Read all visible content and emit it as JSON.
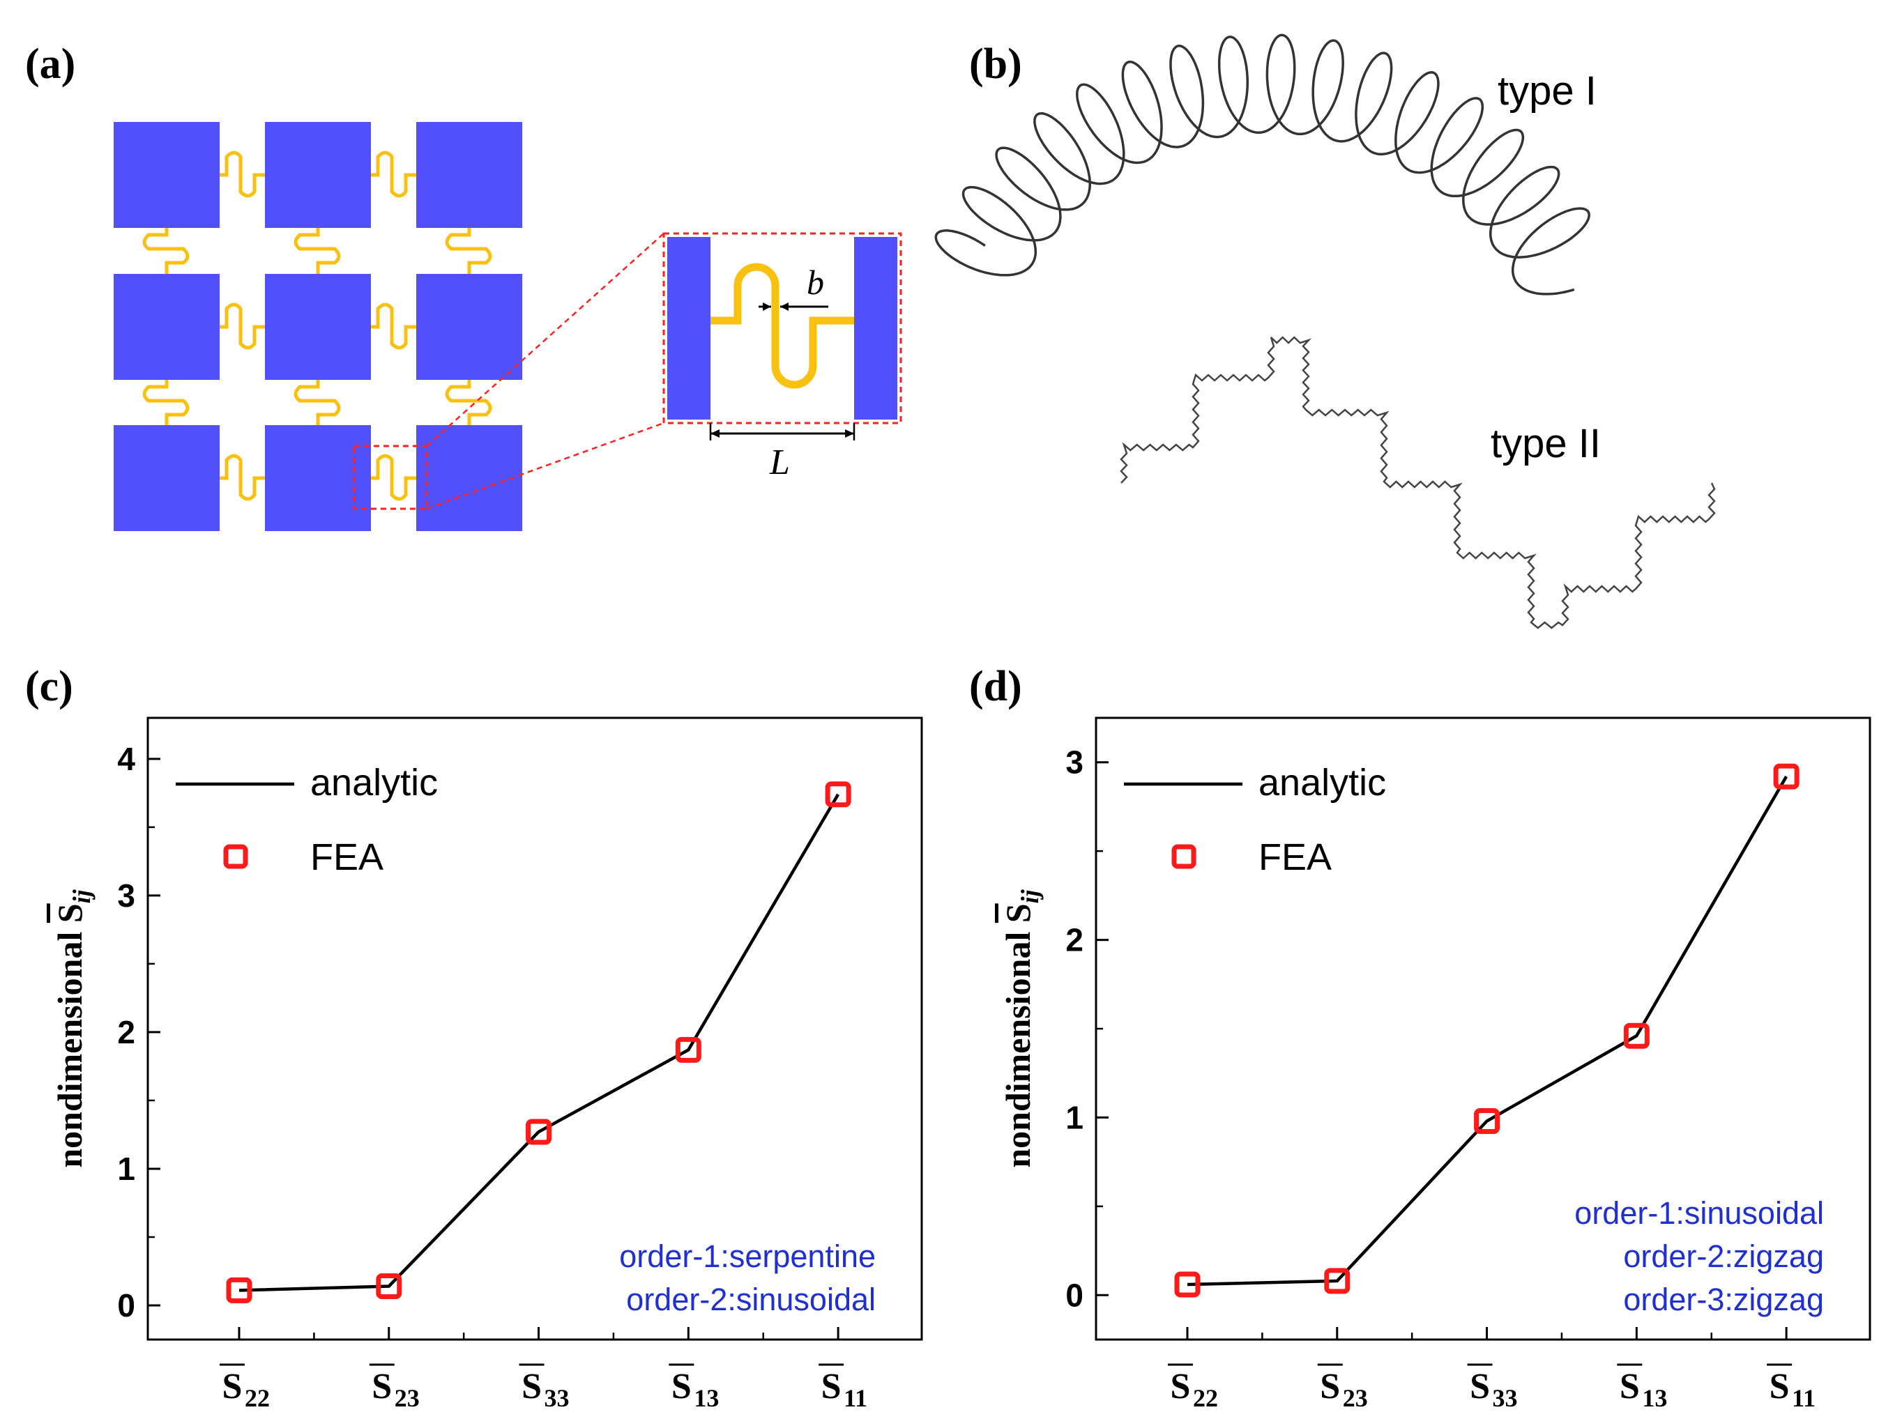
{
  "panels": {
    "a": {
      "label": "(a)",
      "b_label": "b",
      "L_label": "L",
      "colors": {
        "square": "#5150fb",
        "wire": "#f9c10f",
        "zoom": "#ff2020"
      }
    },
    "b": {
      "label": "(b)",
      "type1": "type I",
      "type2": "type II"
    },
    "c": {
      "label": "(c)"
    },
    "d": {
      "label": "(d)"
    }
  },
  "chart_data": [
    {
      "type": "line",
      "panel": "c",
      "ylabel": "nondimensional S̄ij",
      "ylabel_main": "nondimensional ",
      "ylabel_sym": "S",
      "ylabel_sub": "ij",
      "categories": [
        {
          "main": "S",
          "sub": "22"
        },
        {
          "main": "S",
          "sub": "23"
        },
        {
          "main": "S",
          "sub": "33"
        },
        {
          "main": "S",
          "sub": "13"
        },
        {
          "main": "S",
          "sub": "11"
        }
      ],
      "ylim": [
        -0.25,
        4.3
      ],
      "yticks": [
        "0",
        "1",
        "2",
        "3",
        "4"
      ],
      "series": [
        {
          "name": "analytic",
          "kind": "line",
          "values": [
            0.11,
            0.14,
            1.27,
            1.87,
            3.74
          ]
        },
        {
          "name": "FEA",
          "kind": "marker",
          "values": [
            0.11,
            0.14,
            1.27,
            1.87,
            3.74
          ]
        }
      ],
      "annotations": [
        "order-1:serpentine",
        "order-2:sinusoidal"
      ]
    },
    {
      "type": "line",
      "panel": "d",
      "ylabel": "nondimensional S̄ij",
      "ylabel_main": "nondimensional ",
      "ylabel_sym": "S",
      "ylabel_sub": "ij",
      "categories": [
        {
          "main": "S",
          "sub": "22"
        },
        {
          "main": "S",
          "sub": "23"
        },
        {
          "main": "S",
          "sub": "33"
        },
        {
          "main": "S",
          "sub": "13"
        },
        {
          "main": "S",
          "sub": "11"
        }
      ],
      "ylim": [
        -0.25,
        3.25
      ],
      "yticks": [
        "0",
        "1",
        "2",
        "3"
      ],
      "series": [
        {
          "name": "analytic",
          "kind": "line",
          "values": [
            0.06,
            0.08,
            0.98,
            1.46,
            2.92
          ]
        },
        {
          "name": "FEA",
          "kind": "marker",
          "values": [
            0.06,
            0.08,
            0.98,
            1.46,
            2.92
          ]
        }
      ],
      "annotations": [
        "order-1:sinusoidal",
        "order-2:zigzag",
        "order-3:zigzag"
      ]
    }
  ]
}
